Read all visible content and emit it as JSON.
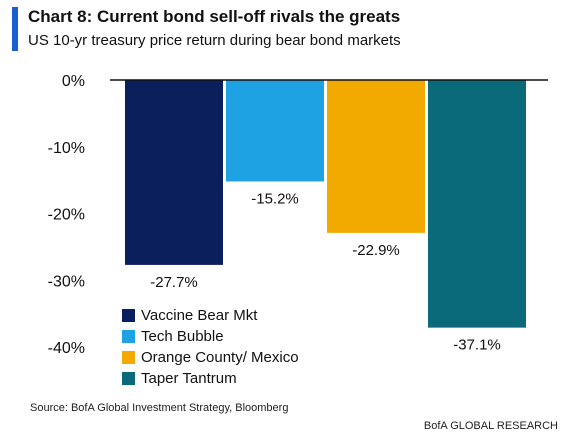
{
  "header": {
    "title": "Chart 8: Current bond sell-off rivals the greats",
    "subtitle": "US 10-yr treasury price return during bear bond markets"
  },
  "footer": {
    "source": "Source:  BofA Global Investment Strategy, Bloomberg",
    "brand": "BofA GLOBAL RESEARCH"
  },
  "colors": {
    "accent": "#1a5fd0",
    "axis": "#111111"
  },
  "chart_data": {
    "type": "bar",
    "title": "Chart 8: Current bond sell-off rivals the greats",
    "subtitle": "US 10-yr treasury price return during bear bond markets",
    "categories": [
      "Vaccine Bear Mkt",
      "Tech Bubble",
      "Orange County/ Mexico",
      "Taper Tantrum"
    ],
    "values": [
      -27.7,
      -15.2,
      -22.9,
      -37.1
    ],
    "value_labels": [
      "-27.7%",
      "-15.2%",
      "-22.9%",
      "-37.1%"
    ],
    "colors": [
      "#0b1f5c",
      "#1ea2e4",
      "#f2a900",
      "#0b6a7a"
    ],
    "ylim": [
      -40,
      0
    ],
    "yticks": [
      0,
      -10,
      -20,
      -30,
      -40
    ],
    "ytick_labels": [
      "0%",
      "-10%",
      "-20%",
      "-30%",
      "-40%"
    ],
    "xlabel": "",
    "ylabel": "",
    "grid": false,
    "legend_position": "bottom-left"
  }
}
